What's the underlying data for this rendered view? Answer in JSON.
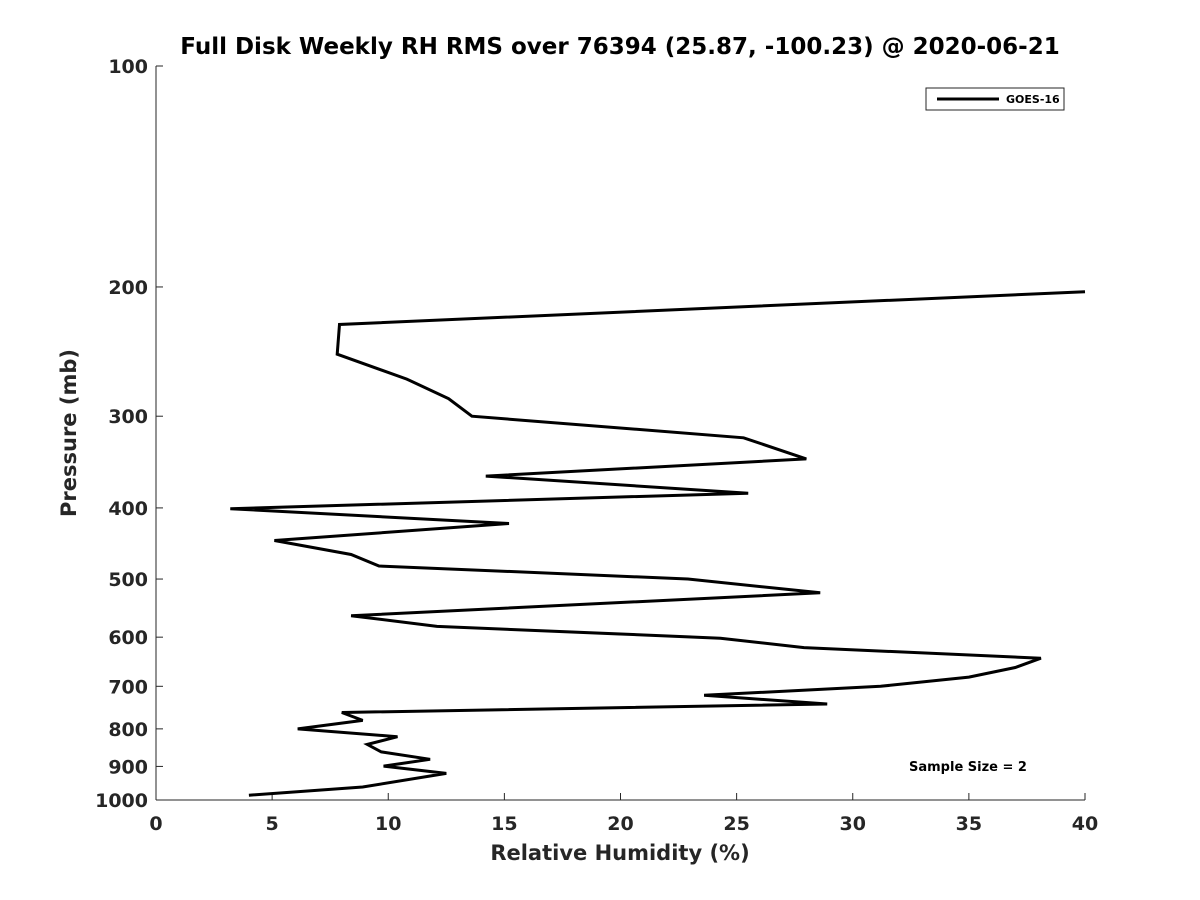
{
  "chart_data": {
    "type": "line",
    "title": "Full Disk Weekly RH RMS over 76394 (25.87, -100.23) @ 2020-06-21",
    "xlabel": "Relative Humidity (%)",
    "ylabel": "Pressure (mb)",
    "xlim": [
      0,
      40
    ],
    "ylim": [
      100,
      1000
    ],
    "yscale": "log",
    "y_reversed": true,
    "grid": false,
    "xticks": [
      0,
      5,
      10,
      15,
      20,
      25,
      30,
      35,
      40
    ],
    "yticks": [
      100,
      200,
      300,
      400,
      500,
      600,
      700,
      800,
      900,
      1000
    ],
    "legend": {
      "placement": "top-right",
      "entries": [
        "GOES-16"
      ]
    },
    "annotation": "Sample Size = 2",
    "series": [
      {
        "name": "GOES-16",
        "color": "#000000",
        "points": [
          {
            "x": 40.0,
            "y": 203
          },
          {
            "x": 7.9,
            "y": 225
          },
          {
            "x": 7.8,
            "y": 247
          },
          {
            "x": 10.8,
            "y": 267
          },
          {
            "x": 12.6,
            "y": 284
          },
          {
            "x": 13.6,
            "y": 300
          },
          {
            "x": 25.3,
            "y": 321
          },
          {
            "x": 28.0,
            "y": 343
          },
          {
            "x": 14.2,
            "y": 362
          },
          {
            "x": 25.5,
            "y": 382
          },
          {
            "x": 3.2,
            "y": 401
          },
          {
            "x": 15.2,
            "y": 420
          },
          {
            "x": 5.1,
            "y": 443
          },
          {
            "x": 8.4,
            "y": 463
          },
          {
            "x": 9.6,
            "y": 480
          },
          {
            "x": 22.9,
            "y": 500
          },
          {
            "x": 28.6,
            "y": 522
          },
          {
            "x": 8.4,
            "y": 561
          },
          {
            "x": 12.1,
            "y": 580
          },
          {
            "x": 24.3,
            "y": 602
          },
          {
            "x": 27.9,
            "y": 620
          },
          {
            "x": 38.1,
            "y": 641
          },
          {
            "x": 37.0,
            "y": 660
          },
          {
            "x": 35.0,
            "y": 680
          },
          {
            "x": 31.2,
            "y": 700
          },
          {
            "x": 23.6,
            "y": 720
          },
          {
            "x": 28.9,
            "y": 740
          },
          {
            "x": 8.0,
            "y": 760
          },
          {
            "x": 8.9,
            "y": 779
          },
          {
            "x": 6.1,
            "y": 800
          },
          {
            "x": 10.4,
            "y": 820
          },
          {
            "x": 9.1,
            "y": 840
          },
          {
            "x": 9.7,
            "y": 860
          },
          {
            "x": 11.8,
            "y": 880
          },
          {
            "x": 9.8,
            "y": 899
          },
          {
            "x": 12.5,
            "y": 920
          },
          {
            "x": 8.9,
            "y": 960
          },
          {
            "x": 4.0,
            "y": 985
          }
        ]
      }
    ]
  }
}
